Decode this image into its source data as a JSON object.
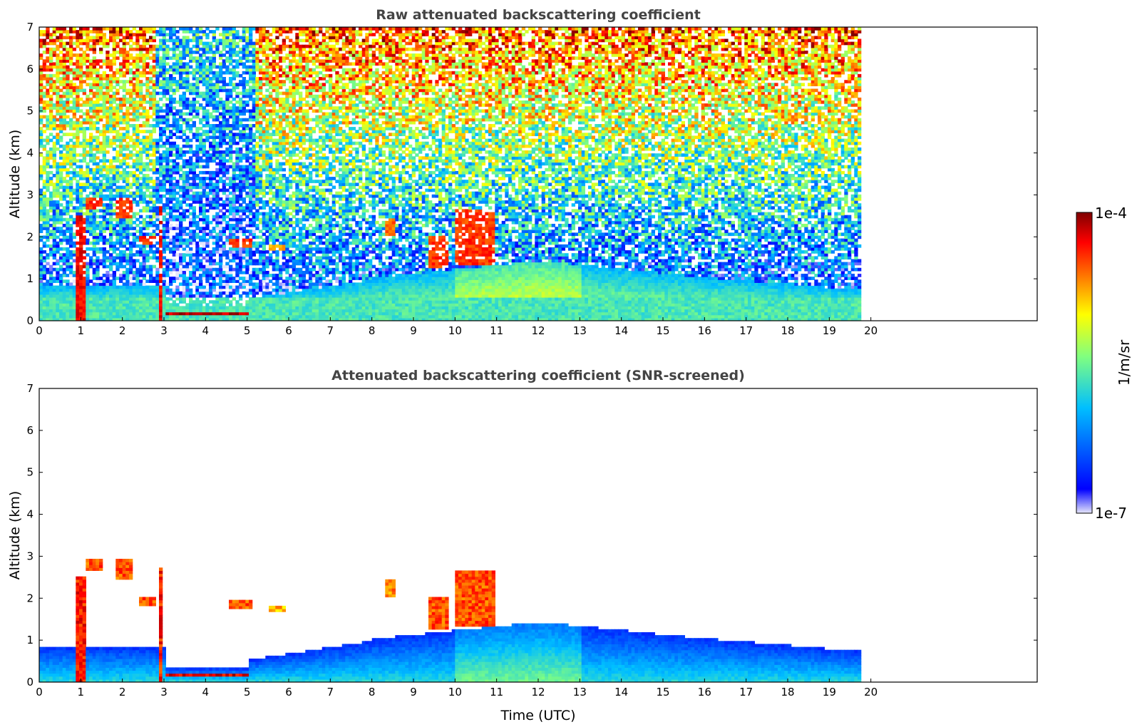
{
  "chart_data": [
    {
      "type": "heatmap",
      "title": "Raw attenuated backscattering coefficient",
      "xlabel": "",
      "ylabel": "Altitude (km)",
      "xlim": [
        0,
        24
      ],
      "ylim": [
        0,
        7
      ],
      "xticks": [
        "0",
        "1",
        "2",
        "3",
        "4",
        "5",
        "6",
        "7",
        "8",
        "9",
        "10",
        "11",
        "12",
        "13",
        "14",
        "15",
        "16",
        "17",
        "18",
        "19",
        "20"
      ],
      "yticks": [
        "0",
        "1",
        "2",
        "3",
        "4",
        "5",
        "6",
        "7"
      ],
      "data_end_hour": 19.7,
      "features": [
        {
          "name": "fog/boundary layer",
          "x": [
            0,
            19.7
          ],
          "y": [
            0,
            0.5
          ],
          "level": 0.5
        },
        {
          "name": "cloud",
          "x": [
            0.8,
            1.1
          ],
          "y": [
            0,
            2.5
          ],
          "level": 0.95
        },
        {
          "name": "cloud",
          "x": [
            1.1,
            1.5
          ],
          "y": [
            2.6,
            2.9
          ],
          "level": 0.9
        },
        {
          "name": "cloud",
          "x": [
            1.8,
            2.2
          ],
          "y": [
            2.4,
            2.9
          ],
          "level": 0.9
        },
        {
          "name": "cloud",
          "x": [
            2.35,
            2.75
          ],
          "y": [
            1.8,
            2.0
          ],
          "level": 0.9
        },
        {
          "name": "cloud",
          "x": [
            2.85,
            2.95
          ],
          "y": [
            0,
            2.7
          ],
          "level": 0.95
        },
        {
          "name": "cloud",
          "x": [
            3.0,
            5.0
          ],
          "y": [
            0.1,
            0.2
          ],
          "level": 1.0
        },
        {
          "name": "cloud",
          "x": [
            4.5,
            5.1
          ],
          "y": [
            1.7,
            1.9
          ],
          "level": 0.9
        },
        {
          "name": "cloud",
          "x": [
            5.5,
            5.9
          ],
          "y": [
            1.65,
            1.8
          ],
          "level": 0.8
        },
        {
          "name": "cloud",
          "x": [
            8.3,
            8.5
          ],
          "y": [
            2.0,
            2.4
          ],
          "level": 0.85
        },
        {
          "name": "cloud",
          "x": [
            9.3,
            9.8
          ],
          "y": [
            1.2,
            2.0
          ],
          "level": 0.9
        },
        {
          "name": "cloud",
          "x": [
            10.0,
            10.9
          ],
          "y": [
            1.3,
            2.6
          ],
          "level": 0.9
        }
      ]
    },
    {
      "type": "heatmap",
      "title": "Attenuated backscattering coefficient (SNR-screened)",
      "xlabel": "Time (UTC)",
      "ylabel": "Altitude (km)",
      "xlim": [
        0,
        24
      ],
      "ylim": [
        0,
        7
      ],
      "xticks": [
        "0",
        "1",
        "2",
        "3",
        "4",
        "5",
        "6",
        "7",
        "8",
        "9",
        "10",
        "11",
        "12",
        "13",
        "14",
        "15",
        "16",
        "17",
        "18",
        "19",
        "20"
      ],
      "yticks": [
        "0",
        "1",
        "2",
        "3",
        "4",
        "5",
        "6",
        "7"
      ],
      "data_end_hour": 19.7
    }
  ],
  "colorbar": {
    "label": "1/m/sr",
    "max_label": "1e-4",
    "min_label": "1e-7",
    "scale": "log",
    "colors": [
      "#e6e6fa",
      "#0000ff",
      "#00bfff",
      "#80ff80",
      "#ffff00",
      "#ff8000",
      "#ff0000",
      "#800000"
    ]
  }
}
